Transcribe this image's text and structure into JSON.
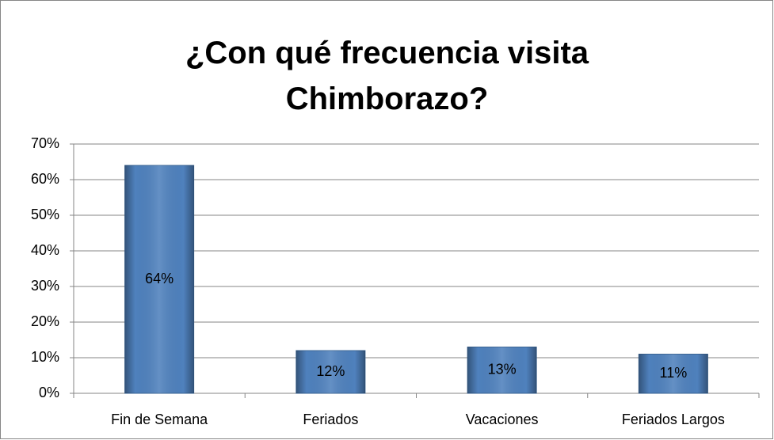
{
  "chart_data": {
    "type": "bar",
    "title": "¿Con qué frecuencia visita Chimborazo?",
    "categories": [
      "Fin de Semana",
      "Feriados",
      "Vacaciones",
      "Feriados Largos"
    ],
    "values": [
      64,
      12,
      13,
      11
    ],
    "value_labels": [
      "64%",
      "12%",
      "13%",
      "11%"
    ],
    "color": "#4f81bd",
    "ylim": [
      0,
      70
    ],
    "yticks": [
      {
        "value": 0,
        "label": "0%"
      },
      {
        "value": 10,
        "label": "10%"
      },
      {
        "value": 20,
        "label": "20%"
      },
      {
        "value": 30,
        "label": "30%"
      },
      {
        "value": 40,
        "label": "40%"
      },
      {
        "value": 50,
        "label": "50%"
      },
      {
        "value": 60,
        "label": "60%"
      },
      {
        "value": 70,
        "label": "70%"
      }
    ],
    "grid": true
  }
}
